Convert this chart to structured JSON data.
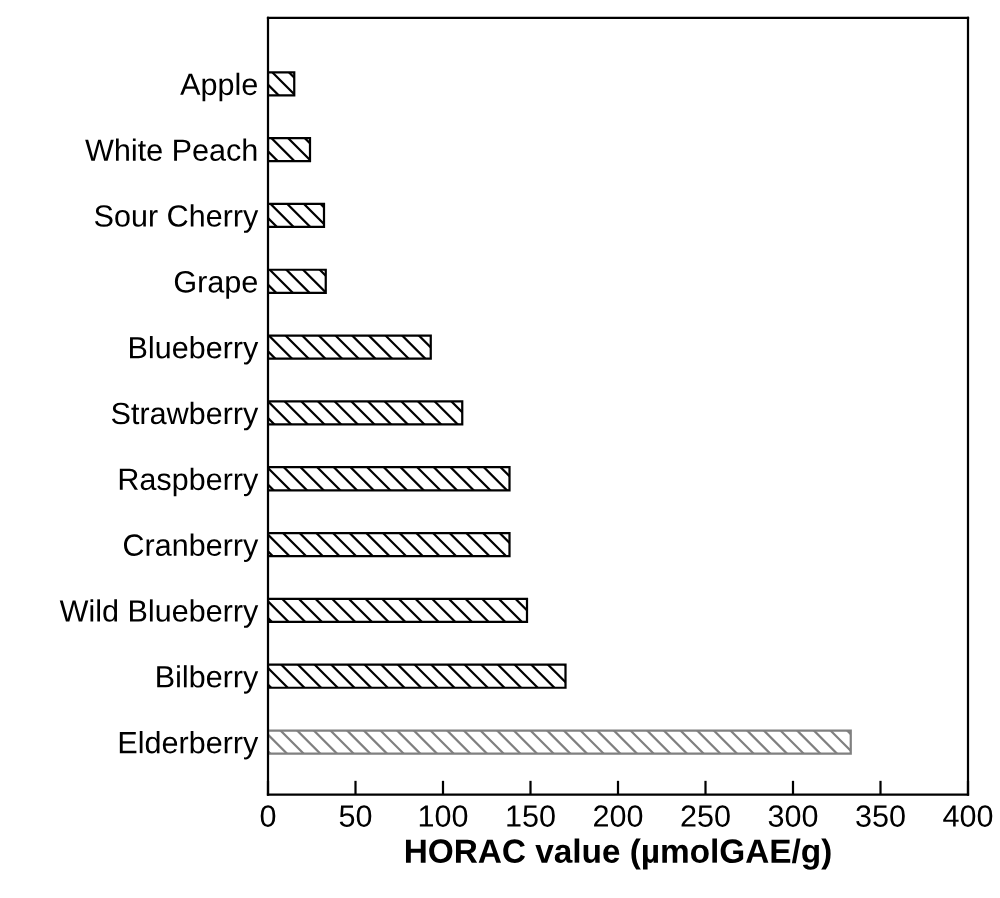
{
  "chart_data": {
    "type": "bar",
    "orientation": "horizontal",
    "xlabel": "HORAC value (µmolGAE/g)",
    "categories": [
      "Apple",
      "White Peach",
      "Sour Cherry",
      "Grape",
      "Blueberry",
      "Strawberry",
      "Raspberry",
      "Cranberry",
      "Wild Blueberry",
      "Bilberry",
      "Elderberry"
    ],
    "values": [
      15,
      24,
      32,
      33,
      93,
      111,
      138,
      138,
      148,
      170,
      333
    ],
    "colors": [
      "#000000",
      "#000000",
      "#000000",
      "#000000",
      "#000000",
      "#000000",
      "#000000",
      "#000000",
      "#000000",
      "#000000",
      "#808080"
    ],
    "xlim": [
      0,
      400
    ],
    "xticks": [
      0,
      50,
      100,
      150,
      200,
      250,
      300,
      350,
      400
    ],
    "grid": false,
    "legend": false
  }
}
